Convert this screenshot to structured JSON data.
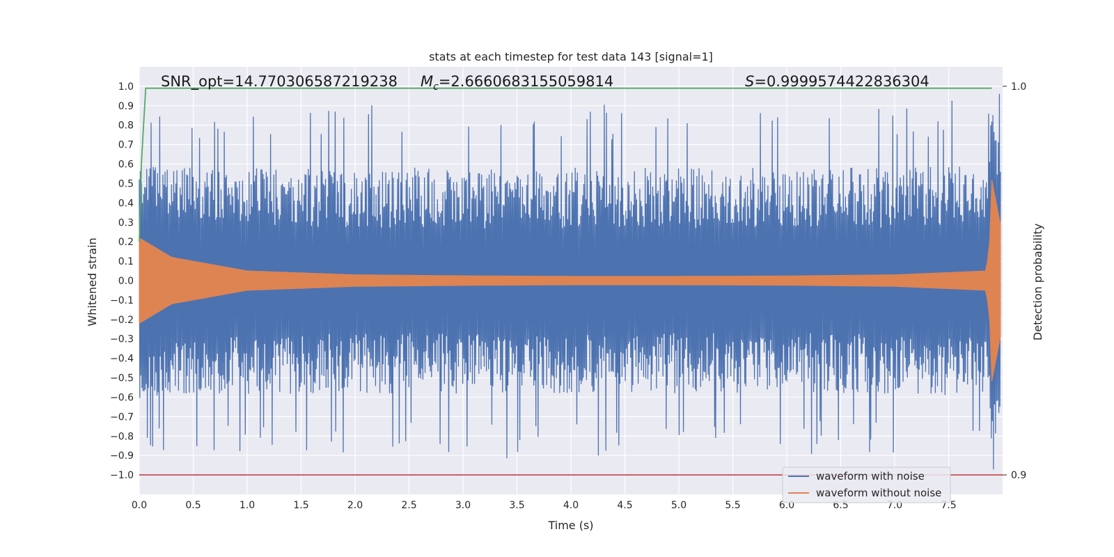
{
  "chart_data": {
    "type": "line",
    "title": "stats at each timestep for test data 143 [signal=1]",
    "xlabel": "Time (s)",
    "ylabel": "Whitened strain",
    "ylabel_right": "Detection probability",
    "xlim": [
      0.0,
      8.0
    ],
    "ylim": [
      -1.1,
      1.1
    ],
    "ylim_right": [
      0.895,
      1.005
    ],
    "x_ticks": [
      "0.0",
      "0.5",
      "1.0",
      "1.5",
      "2.0",
      "2.5",
      "3.0",
      "3.5",
      "4.0",
      "4.5",
      "5.0",
      "5.5",
      "6.0",
      "6.5",
      "7.0",
      "7.5"
    ],
    "y_ticks": [
      "1.0",
      "0.9",
      "0.8",
      "0.7",
      "0.6",
      "0.5",
      "0.4",
      "0.3",
      "0.2",
      "0.1",
      "0.0",
      "−0.1",
      "−0.2",
      "−0.3",
      "−0.4",
      "−0.5",
      "−0.6",
      "−0.7",
      "−0.8",
      "−0.9",
      "−1.0"
    ],
    "y_ticks_right": [
      "1.0",
      "0.9"
    ],
    "grid": true,
    "legend_position": "lower-right",
    "annotations": {
      "snr": "SNR_opt=14.770306587219238",
      "mc_symbol": "M",
      "mc_sub": "c",
      "mc_value": "=2.6660683155059814",
      "s_symbol": "S",
      "s_value": "=0.9999574422836304"
    },
    "series": [
      {
        "name": "waveform with noise",
        "color": "#4c72b0",
        "description_envelope": {
          "t": [
            0.0,
            0.3,
            1.0,
            2.0,
            3.0,
            4.0,
            5.0,
            6.0,
            7.0,
            7.85,
            7.9,
            8.0
          ],
          "inner": [
            0.22,
            0.12,
            0.05,
            0.03,
            0.025,
            0.025,
            0.025,
            0.025,
            0.03,
            0.05,
            0.52,
            0.23
          ],
          "typical_peak": [
            0.75,
            0.7,
            0.72,
            0.72,
            0.72,
            0.72,
            0.72,
            0.72,
            0.72,
            0.75,
            0.97,
            0.72
          ]
        }
      },
      {
        "name": "waveform without noise",
        "color": "#dd8452",
        "envelope": {
          "t": [
            0.0,
            0.3,
            1.0,
            2.0,
            3.0,
            4.0,
            5.0,
            6.0,
            7.0,
            7.85,
            7.88,
            7.9,
            8.0
          ],
          "amp": [
            0.22,
            0.12,
            0.05,
            0.03,
            0.025,
            0.022,
            0.022,
            0.024,
            0.03,
            0.05,
            0.2,
            0.52,
            0.23
          ]
        }
      },
      {
        "name": "detection probability",
        "axis": "right",
        "color": "#55a868",
        "x": [
          0.0,
          0.02,
          0.04,
          0.06,
          7.9
        ],
        "values": [
          0.96,
          0.98,
          0.99,
          0.9995,
          0.9995
        ]
      },
      {
        "name": "threshold",
        "axis": "right",
        "color": "#c44e52",
        "x": [
          0.0,
          8.0
        ],
        "values": [
          0.9,
          0.9
        ]
      }
    ],
    "colors": {
      "background": "#eaeaf2",
      "grid": "#ffffff",
      "text": "#262626"
    }
  }
}
